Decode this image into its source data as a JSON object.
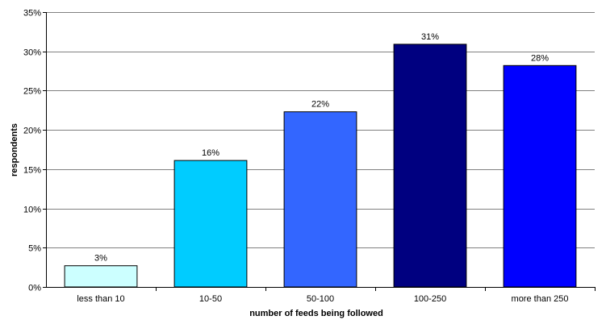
{
  "chart_data": {
    "type": "bar",
    "title": "",
    "xlabel": "number of feeds being followed",
    "ylabel": "respondents",
    "categories": [
      "less than 10",
      "10-50",
      "50-100",
      "100-250",
      "more than 250"
    ],
    "values": [
      2.7,
      16.1,
      22.3,
      30.9,
      28.2
    ],
    "data_labels": [
      "3%",
      "16%",
      "22%",
      "31%",
      "28%"
    ],
    "y_ticks": [
      "0%",
      "5%",
      "10%",
      "15%",
      "20%",
      "25%",
      "30%",
      "35%"
    ],
    "ylim": [
      0,
      35
    ],
    "y_tick_step": 5,
    "grid": true,
    "legend": "none",
    "bar_colors": [
      "#CCFFFF",
      "#00CCFF",
      "#3366FF",
      "#000080",
      "#0000FF"
    ],
    "bar_stroke": "#000000",
    "gridline_color": "#808080"
  }
}
